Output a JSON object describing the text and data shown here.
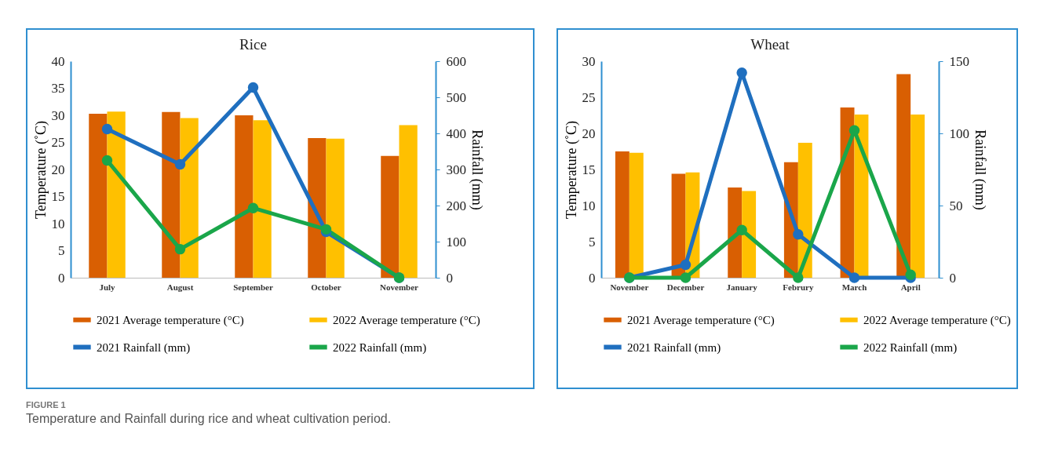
{
  "chart_data": [
    {
      "type": "bar",
      "title": "Rice",
      "ylabel": "Temperature (˚C)",
      "y2label": "Rainfall (mm)",
      "categories": [
        "July",
        "August",
        "September",
        "October",
        "November"
      ],
      "series": [
        {
          "name": "2021 Average temperature (°C)",
          "color": "#d95f02",
          "values": [
            30.3,
            30.6,
            30.0,
            25.8,
            22.5
          ]
        },
        {
          "name": "2022 Average temperature  (°C)",
          "color": "#ffc000",
          "values": [
            30.7,
            29.5,
            29.1,
            25.7,
            28.2
          ]
        },
        {
          "name": "2021 Rainfall (mm)",
          "type": "line",
          "axis": "y2",
          "color": "#1f6fbf",
          "values": [
            412,
            314,
            527,
            127,
            0
          ]
        },
        {
          "name": "2022 Rainfall (mm)",
          "type": "line",
          "axis": "y2",
          "color": "#1aa64a",
          "values": [
            325,
            79,
            193,
            134,
            0
          ]
        }
      ],
      "ylim": [
        0,
        40
      ],
      "yticks": [
        0,
        5,
        10,
        15,
        20,
        25,
        30,
        35,
        40
      ],
      "y2lim": [
        0,
        600
      ],
      "y2ticks": [
        0,
        100,
        200,
        300,
        400,
        500,
        600
      ],
      "grid": false,
      "legend": "bottom",
      "marker": "circle",
      "annotations": [
        "FIGURE 1",
        "Temperature and Rainfall during rice and wheat cultivation period."
      ]
    },
    {
      "type": "bar",
      "title": "Wheat",
      "ylabel": "Temperature (˚C)",
      "y2label": "Rainfall (mm)",
      "categories": [
        "November",
        "December",
        "January",
        "Februry",
        "March",
        "April"
      ],
      "series": [
        {
          "name": "2021 Average temperature (°C)",
          "color": "#d95f02",
          "values": [
            17.5,
            14.4,
            12.5,
            16.0,
            23.6,
            28.2
          ]
        },
        {
          "name": "2022 Average temperature  (°C)",
          "color": "#ffc000",
          "values": [
            17.3,
            14.6,
            12.0,
            18.7,
            22.6,
            22.6
          ]
        },
        {
          "name": "2021 Rainfall (mm)",
          "type": "line",
          "axis": "y2",
          "color": "#1f6fbf",
          "values": [
            0,
            9,
            142,
            30,
            0,
            0
          ]
        },
        {
          "name": "2022 Rainfall (mm)",
          "type": "line",
          "axis": "y2",
          "color": "#1aa64a",
          "values": [
            0,
            0,
            33,
            0,
            102,
            2
          ]
        }
      ],
      "ylim": [
        0,
        30
      ],
      "yticks": [
        0,
        5,
        10,
        15,
        20,
        25,
        30
      ],
      "y2lim": [
        0,
        150
      ],
      "y2ticks": [
        0,
        50,
        100,
        150
      ],
      "grid": false,
      "legend": "bottom",
      "marker": "circle"
    }
  ]
}
